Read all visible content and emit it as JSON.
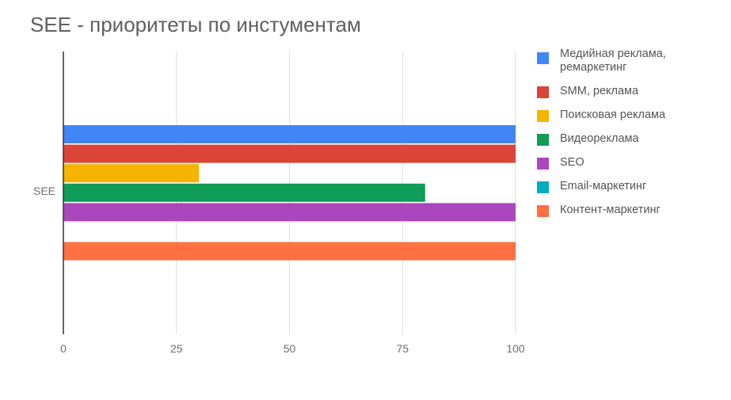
{
  "chart_data": {
    "type": "bar",
    "orientation": "horizontal",
    "title": "SEE - приоритеты по инстументам",
    "categories": [
      "SEE"
    ],
    "xlim": [
      0,
      100
    ],
    "xticks": [
      "0",
      "25",
      "50",
      "75",
      "100"
    ],
    "grid": true,
    "legend_position": "right",
    "series": [
      {
        "name": "Медийная реклама, ремаркетинг",
        "values": [
          100
        ],
        "color": "#4285f4"
      },
      {
        "name": "SMM, реклама",
        "values": [
          100
        ],
        "color": "#db4437"
      },
      {
        "name": "Поисковая реклама",
        "values": [
          30
        ],
        "color": "#f4b400"
      },
      {
        "name": "Видеореклама",
        "values": [
          80
        ],
        "color": "#0f9d58"
      },
      {
        "name": "SEO",
        "values": [
          100
        ],
        "color": "#ab47bc"
      },
      {
        "name": "Email-маркетинг",
        "values": [
          0
        ],
        "color": "#00acc1"
      },
      {
        "name": "Контент-маркетинг",
        "values": [
          100
        ],
        "color": "#ff7043"
      }
    ]
  }
}
